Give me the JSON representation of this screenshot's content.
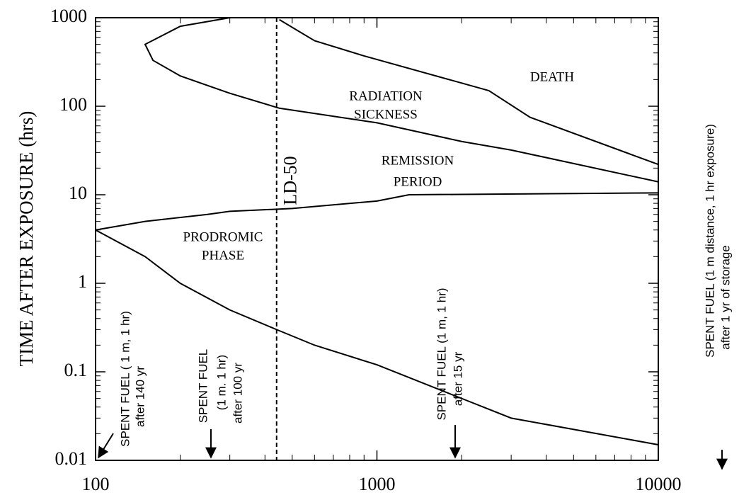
{
  "chart_data": {
    "type": "line",
    "ylabel": "TIME AFTER EXPOSURE (hrs)",
    "log_x": true,
    "log_y": true,
    "xlim": [
      100,
      10000
    ],
    "xticks": [
      100,
      1000,
      10000
    ],
    "ylim": [
      0.01,
      1000
    ],
    "yticks": [
      0.01,
      0.1,
      1,
      10,
      100,
      1000
    ],
    "series": [
      {
        "color": "#000000",
        "x": [
          100,
          150,
          200,
          300,
          440,
          600,
          1000,
          2000,
          3000,
          10000
        ],
        "values": [
          4,
          2,
          1,
          0.5,
          0.3,
          0.2,
          0.12,
          0.05,
          0.03,
          0.015
        ]
      },
      {
        "color": "#000000",
        "x": [
          100,
          150,
          250,
          300,
          500,
          1000,
          1300,
          10000
        ],
        "values": [
          4,
          5,
          6,
          6.5,
          7,
          8.5,
          10,
          10.5
        ]
      },
      {
        "color": "#000000",
        "x": [
          300,
          200,
          150,
          160,
          200,
          300,
          450,
          1000,
          2000,
          3000,
          10000
        ],
        "values": [
          1000,
          800,
          500,
          330,
          220,
          140,
          95,
          65,
          40,
          32,
          14
        ]
      },
      {
        "color": "#000000",
        "x": [
          450,
          600,
          900,
          2500,
          3500,
          10000
        ],
        "values": [
          950,
          550,
          370,
          150,
          75,
          22
        ]
      }
    ],
    "reference_line": {
      "x": 440,
      "label": "LD-50"
    },
    "annotations": [
      "DEATH",
      "RADIATION",
      "SICKNESS",
      "REMISSION",
      "PERIOD",
      "PRODROMIC",
      "PHASE",
      "SPENT FUEL ( 1 m, 1 hr)",
      "after 140 yr",
      "SPENT FUEL",
      "(1 m. 1 hr)",
      "after 100 yr",
      "SPENT FUEL (1 m, 1 hr)",
      "after 15 yr",
      "SPENT FUEL (1 m distance, 1 hr exposure)",
      "after 1 yr of storage"
    ]
  }
}
